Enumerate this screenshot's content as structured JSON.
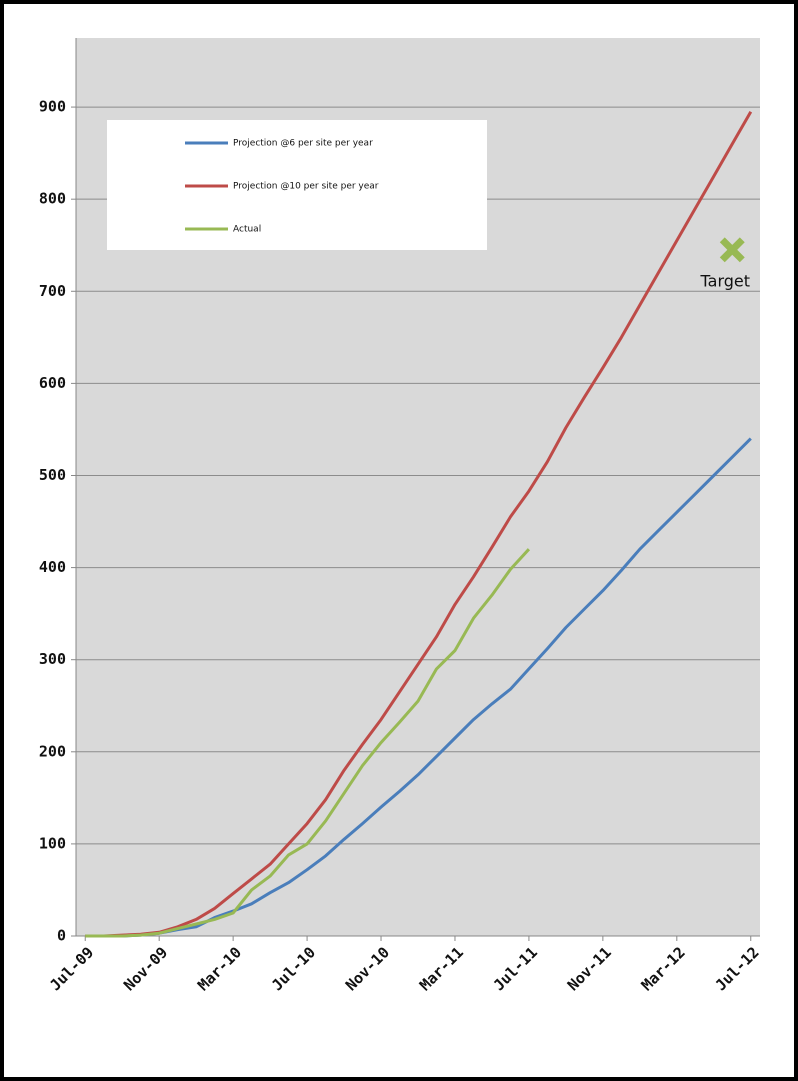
{
  "chart_data": {
    "type": "line",
    "categories": [
      "Jul-09",
      null,
      null,
      null,
      "Nov-09",
      null,
      null,
      null,
      "Mar-10",
      null,
      null,
      null,
      "Jul-10",
      null,
      null,
      null,
      "Nov-10",
      null,
      null,
      null,
      "Mar-11",
      null,
      null,
      null,
      "Jul-11",
      null,
      null,
      null,
      "Nov-11",
      null,
      null,
      null,
      "Mar-12",
      null,
      null,
      null,
      "Jul-12"
    ],
    "series": [
      {
        "name": "Projection @6 per site per year",
        "color": "#4a7ebb",
        "values": [
          0,
          0,
          0,
          1,
          3,
          7,
          10,
          20,
          27,
          35,
          47,
          58,
          72,
          87,
          105,
          122,
          140,
          157,
          175,
          195,
          215,
          235,
          252,
          268,
          290,
          312,
          335,
          355,
          375,
          397,
          420,
          440,
          460,
          480,
          500,
          520,
          540
        ]
      },
      {
        "name": "Projection @10 per site per year",
        "color": "#be4b48",
        "values": [
          0,
          0,
          1,
          2,
          4,
          10,
          18,
          30,
          46,
          62,
          78,
          100,
          122,
          148,
          180,
          208,
          235,
          265,
          295,
          325,
          360,
          390,
          422,
          455,
          483,
          515,
          552,
          585,
          617,
          650,
          685,
          720,
          755,
          790,
          825,
          860,
          895
        ]
      },
      {
        "name": "Actual",
        "color": "#98b954",
        "values": [
          0,
          0,
          0,
          1,
          3,
          8,
          13,
          18,
          25,
          50,
          65,
          88,
          100,
          125,
          155,
          185,
          210,
          232,
          255,
          290,
          310,
          345,
          370,
          398,
          420,
          null,
          null,
          null,
          null,
          null,
          null,
          null,
          null,
          null,
          null,
          null,
          null
        ]
      }
    ],
    "annotations": [
      {
        "text": "Target",
        "x": 35,
        "y": 745,
        "color": "#98b954"
      }
    ],
    "ylim": [
      0,
      975
    ],
    "yticks": [
      0,
      100,
      200,
      300,
      400,
      500,
      600,
      700,
      800,
      900
    ],
    "grid": true
  }
}
